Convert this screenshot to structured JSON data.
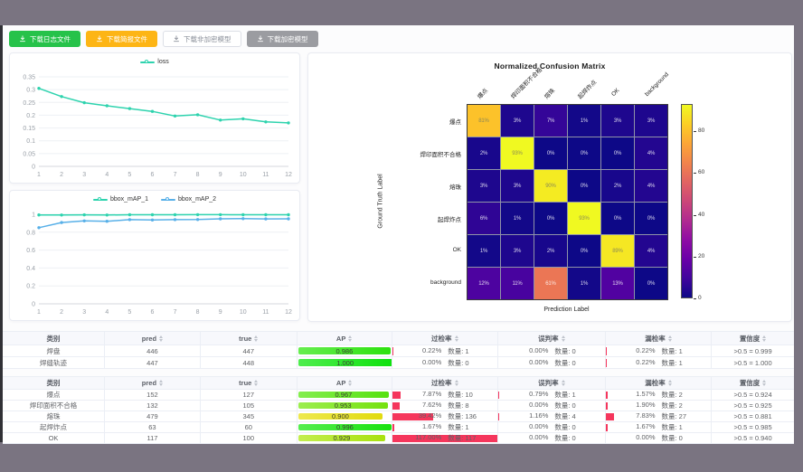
{
  "frame": {
    "band_color": "#7a7481",
    "edge_color": "#313136",
    "content_bg": "#fcfcfd"
  },
  "toolbar": {
    "buttons": [
      {
        "label": "下载日志文件",
        "bg": "#26c24a",
        "fg": "#ffffff",
        "style": "solid"
      },
      {
        "label": "下载简报文件",
        "bg": "#fdb515",
        "fg": "#ffffff",
        "style": "solid"
      },
      {
        "label": "下载非加密模型",
        "bg": "#ffffff",
        "fg": "#8a8f99",
        "style": "outline"
      },
      {
        "label": "下载加密模型",
        "bg": "#9b9ca1",
        "fg": "#ffffff",
        "style": "solid"
      }
    ]
  },
  "chart_data": [
    {
      "type": "line",
      "title": "loss",
      "x": [
        1,
        2,
        3,
        4,
        5,
        6,
        7,
        8,
        9,
        10,
        11,
        12
      ],
      "series": [
        {
          "name": "loss",
          "color": "#2ed3ae",
          "values": [
            0.305,
            0.273,
            0.249,
            0.237,
            0.226,
            0.215,
            0.197,
            0.202,
            0.181,
            0.186,
            0.174,
            0.17
          ]
        }
      ],
      "yticks": [
        0,
        0.05,
        0.1,
        0.15,
        0.2,
        0.25,
        0.3,
        0.35
      ],
      "ylim": [
        0,
        0.35
      ],
      "grid": true,
      "legend_position": "top"
    },
    {
      "type": "line",
      "title": "bbox_mAP",
      "x": [
        1,
        2,
        3,
        4,
        5,
        6,
        7,
        8,
        9,
        10,
        11,
        12
      ],
      "series": [
        {
          "name": "bbox_mAP_1",
          "color": "#2ed3ae",
          "values": [
            0.993,
            0.992,
            0.994,
            0.992,
            0.995,
            0.995,
            0.995,
            0.996,
            0.996,
            0.995,
            0.995,
            0.995
          ]
        },
        {
          "name": "bbox_mAP_2",
          "color": "#58b0e8",
          "values": [
            0.851,
            0.908,
            0.926,
            0.922,
            0.94,
            0.936,
            0.94,
            0.941,
            0.95,
            0.952,
            0.948,
            0.95
          ]
        }
      ],
      "yticks": [
        0,
        0.2,
        0.4,
        0.6,
        0.8,
        1
      ],
      "ylim": [
        0,
        1
      ],
      "grid": true,
      "legend_position": "top"
    },
    {
      "type": "heatmap",
      "title": "Normalized Confusion Matrix",
      "xlabel": "Prediction Label",
      "ylabel": "Ground Truth Label",
      "labels": [
        "爆点",
        "焊印面积不合格",
        "熔珠",
        "起焊炸点",
        "OK",
        "background"
      ],
      "matrix": [
        [
          81,
          3,
          7,
          1,
          3,
          3
        ],
        [
          2,
          93,
          0,
          0,
          0,
          4
        ],
        [
          3,
          3,
          90,
          0,
          2,
          4
        ],
        [
          6,
          1,
          0,
          93,
          0,
          0
        ],
        [
          1,
          3,
          2,
          0,
          89,
          4
        ],
        [
          12,
          11,
          61,
          1,
          13,
          0
        ]
      ],
      "unit": "%",
      "vmax": 93,
      "colormap": "plasma",
      "colorbar_ticks": [
        0,
        20,
        40,
        60,
        80
      ]
    }
  ],
  "tables": {
    "headers": [
      "类别",
      "pred",
      "true",
      "AP",
      "过检率",
      "误判率",
      "漏检率",
      "置信度"
    ],
    "sortable": [
      false,
      true,
      true,
      true,
      true,
      true,
      true,
      true
    ],
    "count_prefix": "数量:",
    "groups": [
      {
        "rows": [
          {
            "name": "焊盘",
            "pred": "446",
            "true": "447",
            "ap": 0.986,
            "overkill_pct": "0.22%",
            "overkill_n": "数量: 1",
            "misjudge_pct": "0.00%",
            "misjudge_n": "数量: 0",
            "miss_pct": "0.22%",
            "miss_n": "数量: 1",
            "conf": ">0.5 = 0.999"
          },
          {
            "name": "焊缝轨迹",
            "pred": "447",
            "true": "448",
            "ap": 1.0,
            "overkill_pct": "0.00%",
            "overkill_n": "数量: 0",
            "misjudge_pct": "0.00%",
            "misjudge_n": "数量: 0",
            "miss_pct": "0.22%",
            "miss_n": "数量: 1",
            "conf": ">0.5 = 1.000"
          }
        ]
      },
      {
        "rows": [
          {
            "name": "爆点",
            "pred": "152",
            "true": "127",
            "ap": 0.967,
            "overkill_pct": "7.87%",
            "overkill_n": "数量: 10",
            "misjudge_pct": "0.79%",
            "misjudge_n": "数量: 1",
            "miss_pct": "1.57%",
            "miss_n": "数量: 2",
            "conf": ">0.5 = 0.924"
          },
          {
            "name": "焊印面积不合格",
            "pred": "132",
            "true": "105",
            "ap": 0.953,
            "overkill_pct": "7.62%",
            "overkill_n": "数量: 8",
            "misjudge_pct": "0.00%",
            "misjudge_n": "数量: 0",
            "miss_pct": "1.90%",
            "miss_n": "数量: 2",
            "conf": ">0.5 = 0.925"
          },
          {
            "name": "熔珠",
            "pred": "479",
            "true": "345",
            "ap": 0.9,
            "overkill_pct": "39.42%",
            "overkill_n": "数量: 136",
            "misjudge_pct": "1.16%",
            "misjudge_n": "数量: 4",
            "miss_pct": "7.83%",
            "miss_n": "数量: 27",
            "conf": ">0.5 = 0.881"
          },
          {
            "name": "起焊炸点",
            "pred": "63",
            "true": "60",
            "ap": 0.996,
            "overkill_pct": "1.67%",
            "overkill_n": "数量: 1",
            "misjudge_pct": "0.00%",
            "misjudge_n": "数量: 0",
            "miss_pct": "1.67%",
            "miss_n": "数量: 1",
            "conf": ">0.5 = 0.985"
          },
          {
            "name": "OK",
            "pred": "117",
            "true": "100",
            "ap": 0.929,
            "overkill_pct": "117.00%",
            "overkill_n": "数量: 117",
            "misjudge_pct": "0.00%",
            "misjudge_n": "数量: 0",
            "miss_pct": "0.00%",
            "miss_n": "数量: 0",
            "conf": ">0.5 = 0.940"
          }
        ]
      }
    ],
    "colors": {
      "rate_bar": "#f5365c",
      "ap_text": "#3a3f33"
    }
  }
}
